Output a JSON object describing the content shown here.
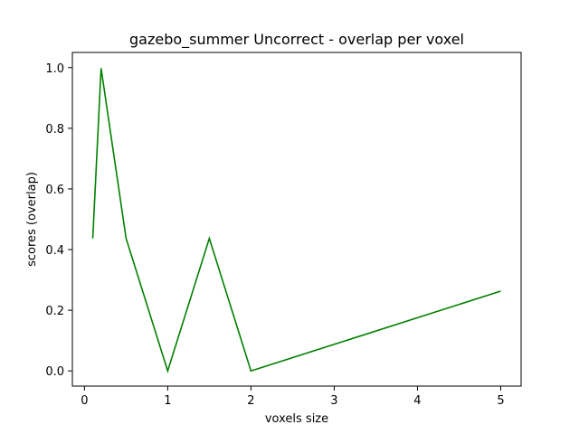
{
  "chart_data": {
    "type": "line",
    "title": "gazebo_summer Uncorrect - overlap per voxel",
    "xlabel": "voxels size",
    "ylabel": "scores (overlap)",
    "xlim": [
      -0.145,
      5.245
    ],
    "ylim": [
      -0.05,
      1.05
    ],
    "xticks": [
      0,
      1,
      2,
      3,
      4,
      5
    ],
    "yticks": [
      0.0,
      0.2,
      0.4,
      0.6,
      0.8,
      1.0
    ],
    "xtick_labels": [
      "0",
      "1",
      "2",
      "3",
      "4",
      "5"
    ],
    "ytick_labels": [
      "0.0",
      "0.2",
      "0.4",
      "0.6",
      "0.8",
      "1.0"
    ],
    "grid": false,
    "series": [
      {
        "color": "#008000",
        "x": [
          0.1,
          0.2,
          0.5,
          1.0,
          1.5,
          2.0,
          5.0
        ],
        "y": [
          0.437,
          0.998,
          0.437,
          0.0,
          0.437,
          0.0,
          0.263
        ]
      }
    ]
  }
}
